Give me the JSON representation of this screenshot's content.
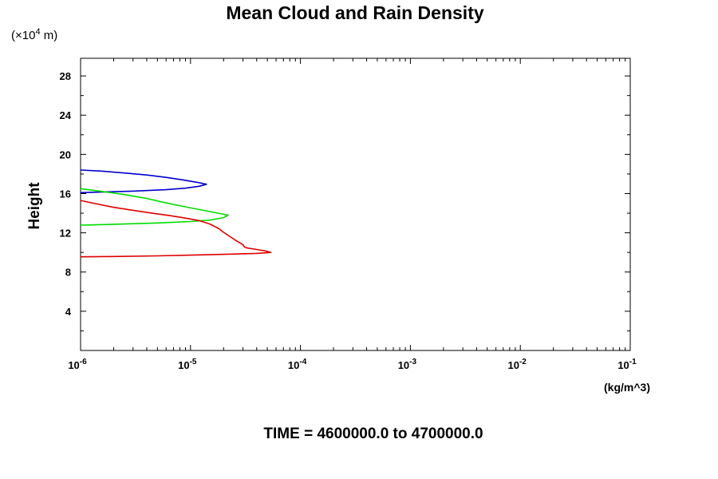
{
  "chart_data": {
    "type": "line",
    "title": "Mean Cloud and Rain Density",
    "ylabel": "Height",
    "y_scale_label": {
      "base": "(×10",
      "exp": "4",
      "unit": " m)"
    },
    "xunit": "(kg/m^3)",
    "footer": "TIME = 4600000.0 to 4700000.0",
    "x_scale": "log",
    "xlim": [
      1e-06,
      0.1
    ],
    "ylim": [
      0,
      29.8
    ],
    "grid": false,
    "x_ticks": [
      {
        "base": "10",
        "exp": "-6"
      },
      {
        "base": "10",
        "exp": "-5"
      },
      {
        "base": "10",
        "exp": "-4"
      },
      {
        "base": "10",
        "exp": "-3"
      },
      {
        "base": "10",
        "exp": "-2"
      },
      {
        "base": "10",
        "exp": "-1"
      }
    ],
    "y_ticks": [
      "4",
      "8",
      "12",
      "16",
      "20",
      "24",
      "28"
    ],
    "series": [
      {
        "color": "#0000cc",
        "points": [
          [
            1e-06,
            18.4
          ],
          [
            1.5e-06,
            18.3
          ],
          [
            2.5e-06,
            18.1
          ],
          [
            4e-06,
            17.9
          ],
          [
            6e-06,
            17.65
          ],
          [
            8.5e-06,
            17.4
          ],
          [
            1.15e-05,
            17.15
          ],
          [
            1.4e-05,
            16.95
          ],
          [
            1.2e-05,
            16.75
          ],
          [
            9e-06,
            16.55
          ],
          [
            6e-06,
            16.4
          ],
          [
            3e-06,
            16.25
          ],
          [
            1.5e-06,
            16.15
          ],
          [
            1e-06,
            16.1
          ]
        ]
      },
      {
        "color": "#00dd00",
        "points": [
          [
            1e-06,
            16.5
          ],
          [
            1.5e-06,
            16.25
          ],
          [
            2.5e-06,
            15.9
          ],
          [
            4e-06,
            15.5
          ],
          [
            6e-06,
            15.05
          ],
          [
            9e-06,
            14.65
          ],
          [
            1.3e-05,
            14.3
          ],
          [
            1.8e-05,
            14.0
          ],
          [
            2.2e-05,
            13.8
          ],
          [
            2e-05,
            13.55
          ],
          [
            1.5e-05,
            13.3
          ],
          [
            1e-05,
            13.15
          ],
          [
            5e-06,
            13.0
          ],
          [
            2.5e-06,
            12.9
          ],
          [
            1.2e-06,
            12.8
          ],
          [
            1e-06,
            12.78
          ]
        ]
      },
      {
        "color": "#dd0000",
        "points": [
          [
            1e-06,
            15.3
          ],
          [
            1.4e-06,
            14.95
          ],
          [
            2e-06,
            14.6
          ],
          [
            3e-06,
            14.3
          ],
          [
            4.5e-06,
            14.0
          ],
          [
            6.5e-06,
            13.75
          ],
          [
            9e-06,
            13.5
          ],
          [
            1.2e-05,
            13.25
          ],
          [
            1.5e-05,
            12.9
          ],
          [
            1.8e-05,
            12.45
          ],
          [
            2e-05,
            12.05
          ],
          [
            2.3e-05,
            11.6
          ],
          [
            2.6e-05,
            11.2
          ],
          [
            3e-05,
            10.8
          ],
          [
            3.1e-05,
            10.55
          ],
          [
            3.3e-05,
            10.45
          ],
          [
            4e-05,
            10.3
          ],
          [
            4.8e-05,
            10.15
          ],
          [
            5.4e-05,
            10.0
          ],
          [
            4e-05,
            9.9
          ],
          [
            2e-05,
            9.8
          ],
          [
            1e-05,
            9.72
          ],
          [
            5e-06,
            9.65
          ],
          [
            2e-06,
            9.58
          ],
          [
            1e-06,
            9.55
          ]
        ]
      }
    ]
  }
}
